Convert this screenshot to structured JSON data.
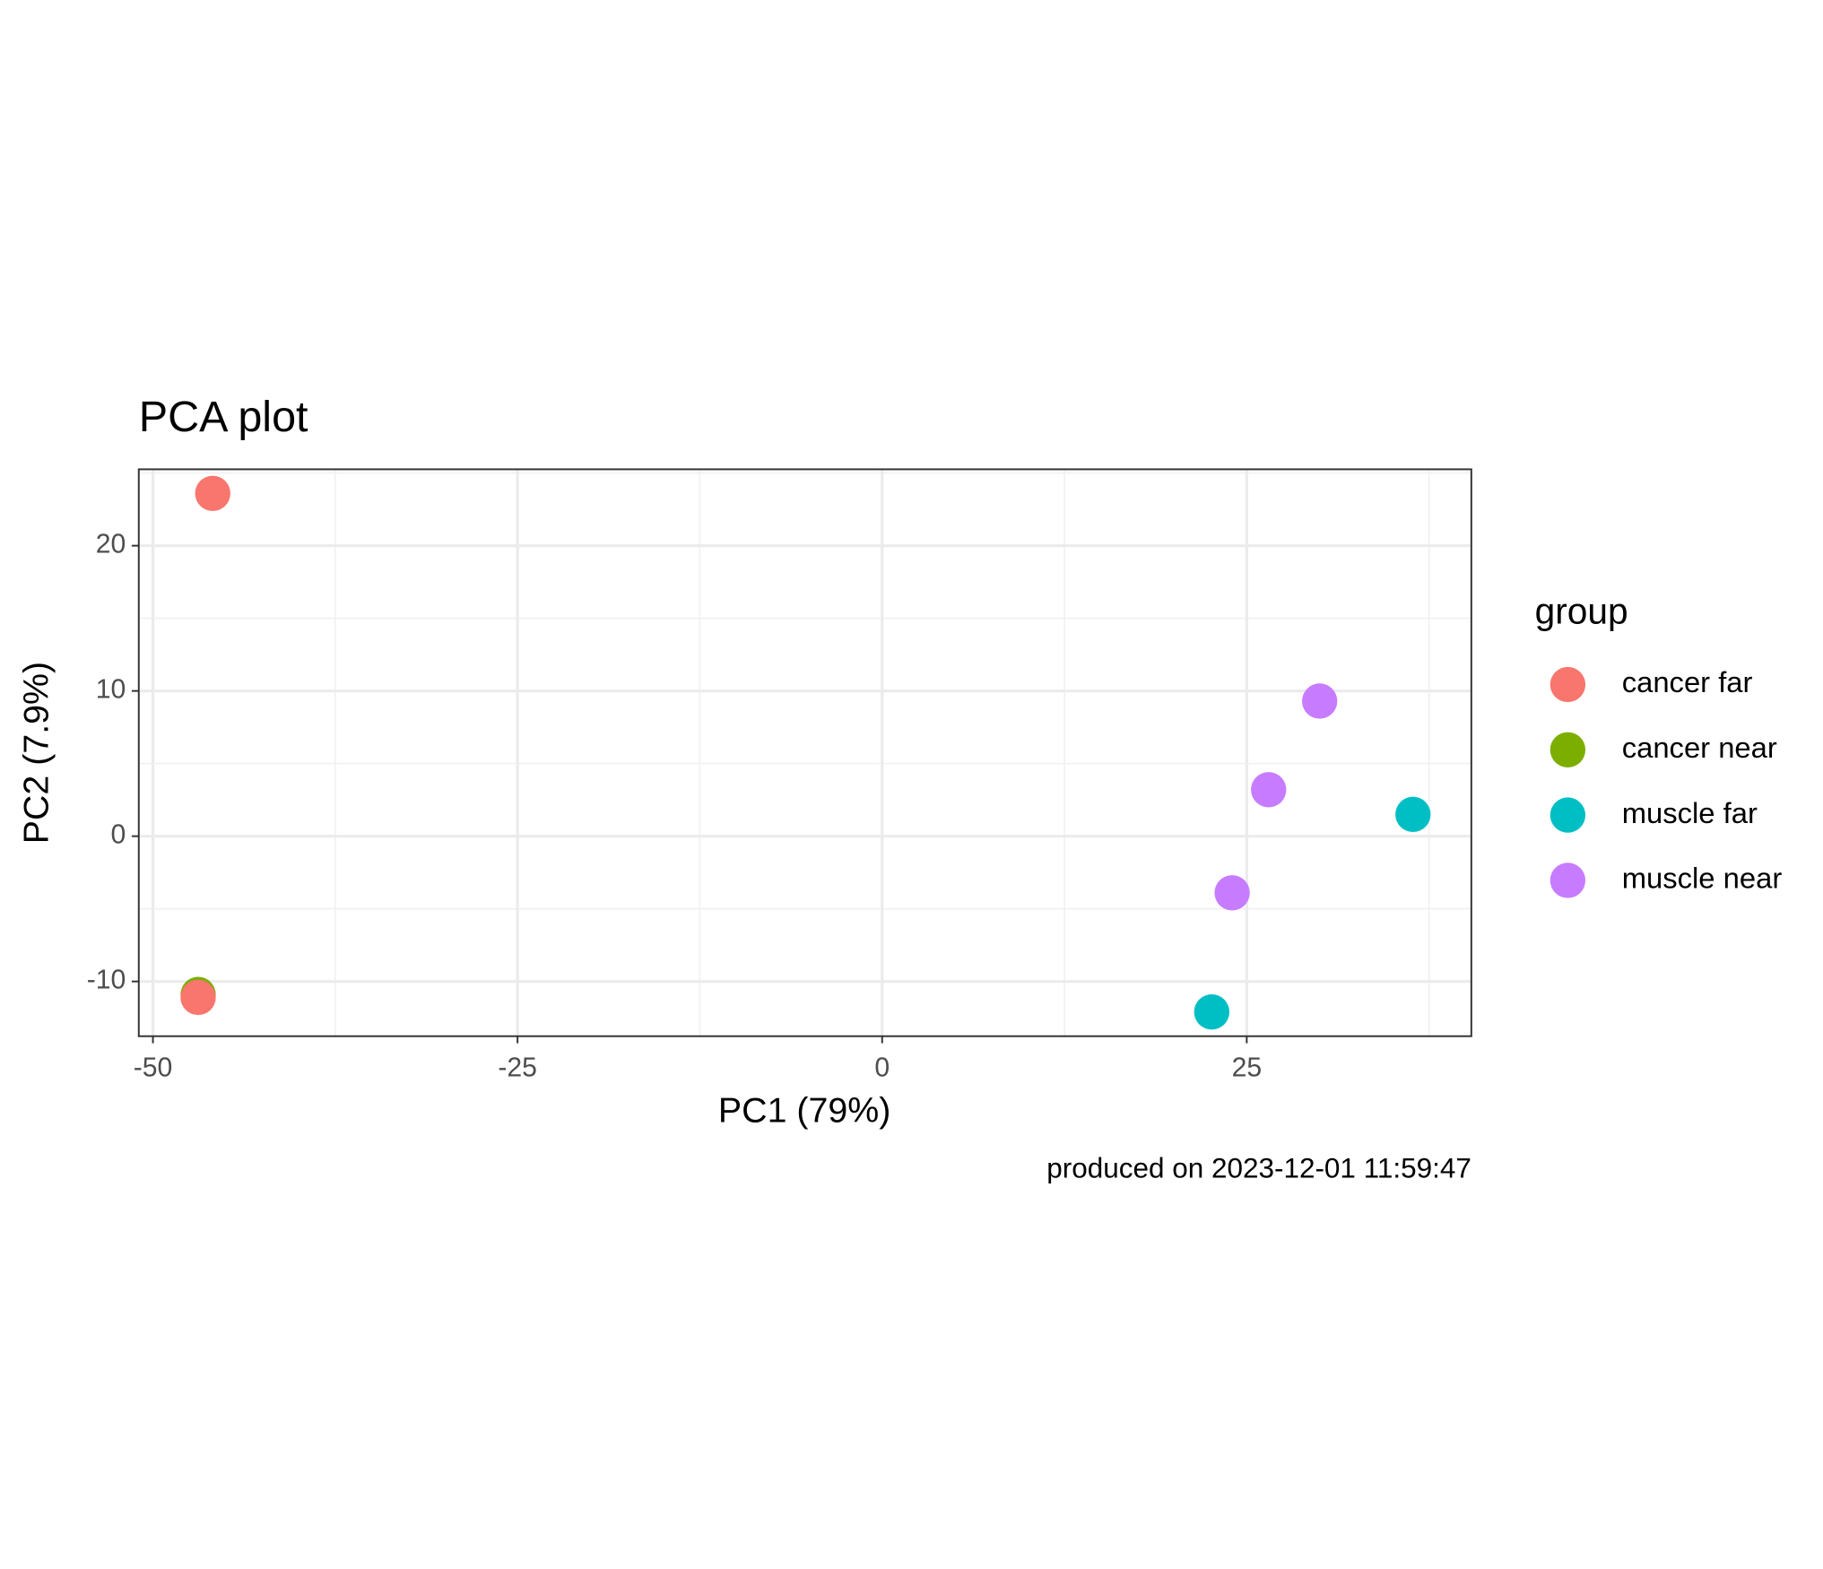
{
  "chart_data": {
    "type": "scatter",
    "title": "PCA plot",
    "x_label": "PC1 (79%)",
    "y_label": "PC2 (7.9%)",
    "caption": "produced on 2023-12-01 11:59:47",
    "legend_title": "group",
    "legend_position": "right",
    "grid": true,
    "xlim": [
      -50.97,
      40.4
    ],
    "ylim": [
      -13.77,
      25.26
    ],
    "xticks": [
      -50,
      -25,
      0,
      25
    ],
    "yticks": [
      -10,
      0,
      10,
      20
    ],
    "series": [
      {
        "name": "cancer far",
        "color": "#F8766D",
        "x": [
          -45.9,
          -46.9
        ],
        "y": [
          23.6,
          -11.1
        ]
      },
      {
        "name": "cancer near",
        "color": "#7CAE00",
        "x": [
          -46.9
        ],
        "y": [
          -10.9
        ]
      },
      {
        "name": "muscle far",
        "color": "#00BFC4",
        "x": [
          22.6,
          36.4
        ],
        "y": [
          -12.1,
          1.5
        ]
      },
      {
        "name": "muscle near",
        "color": "#C77CFF",
        "x": [
          30.0,
          26.5,
          24.0
        ],
        "y": [
          9.3,
          3.2,
          -3.9
        ]
      }
    ]
  }
}
